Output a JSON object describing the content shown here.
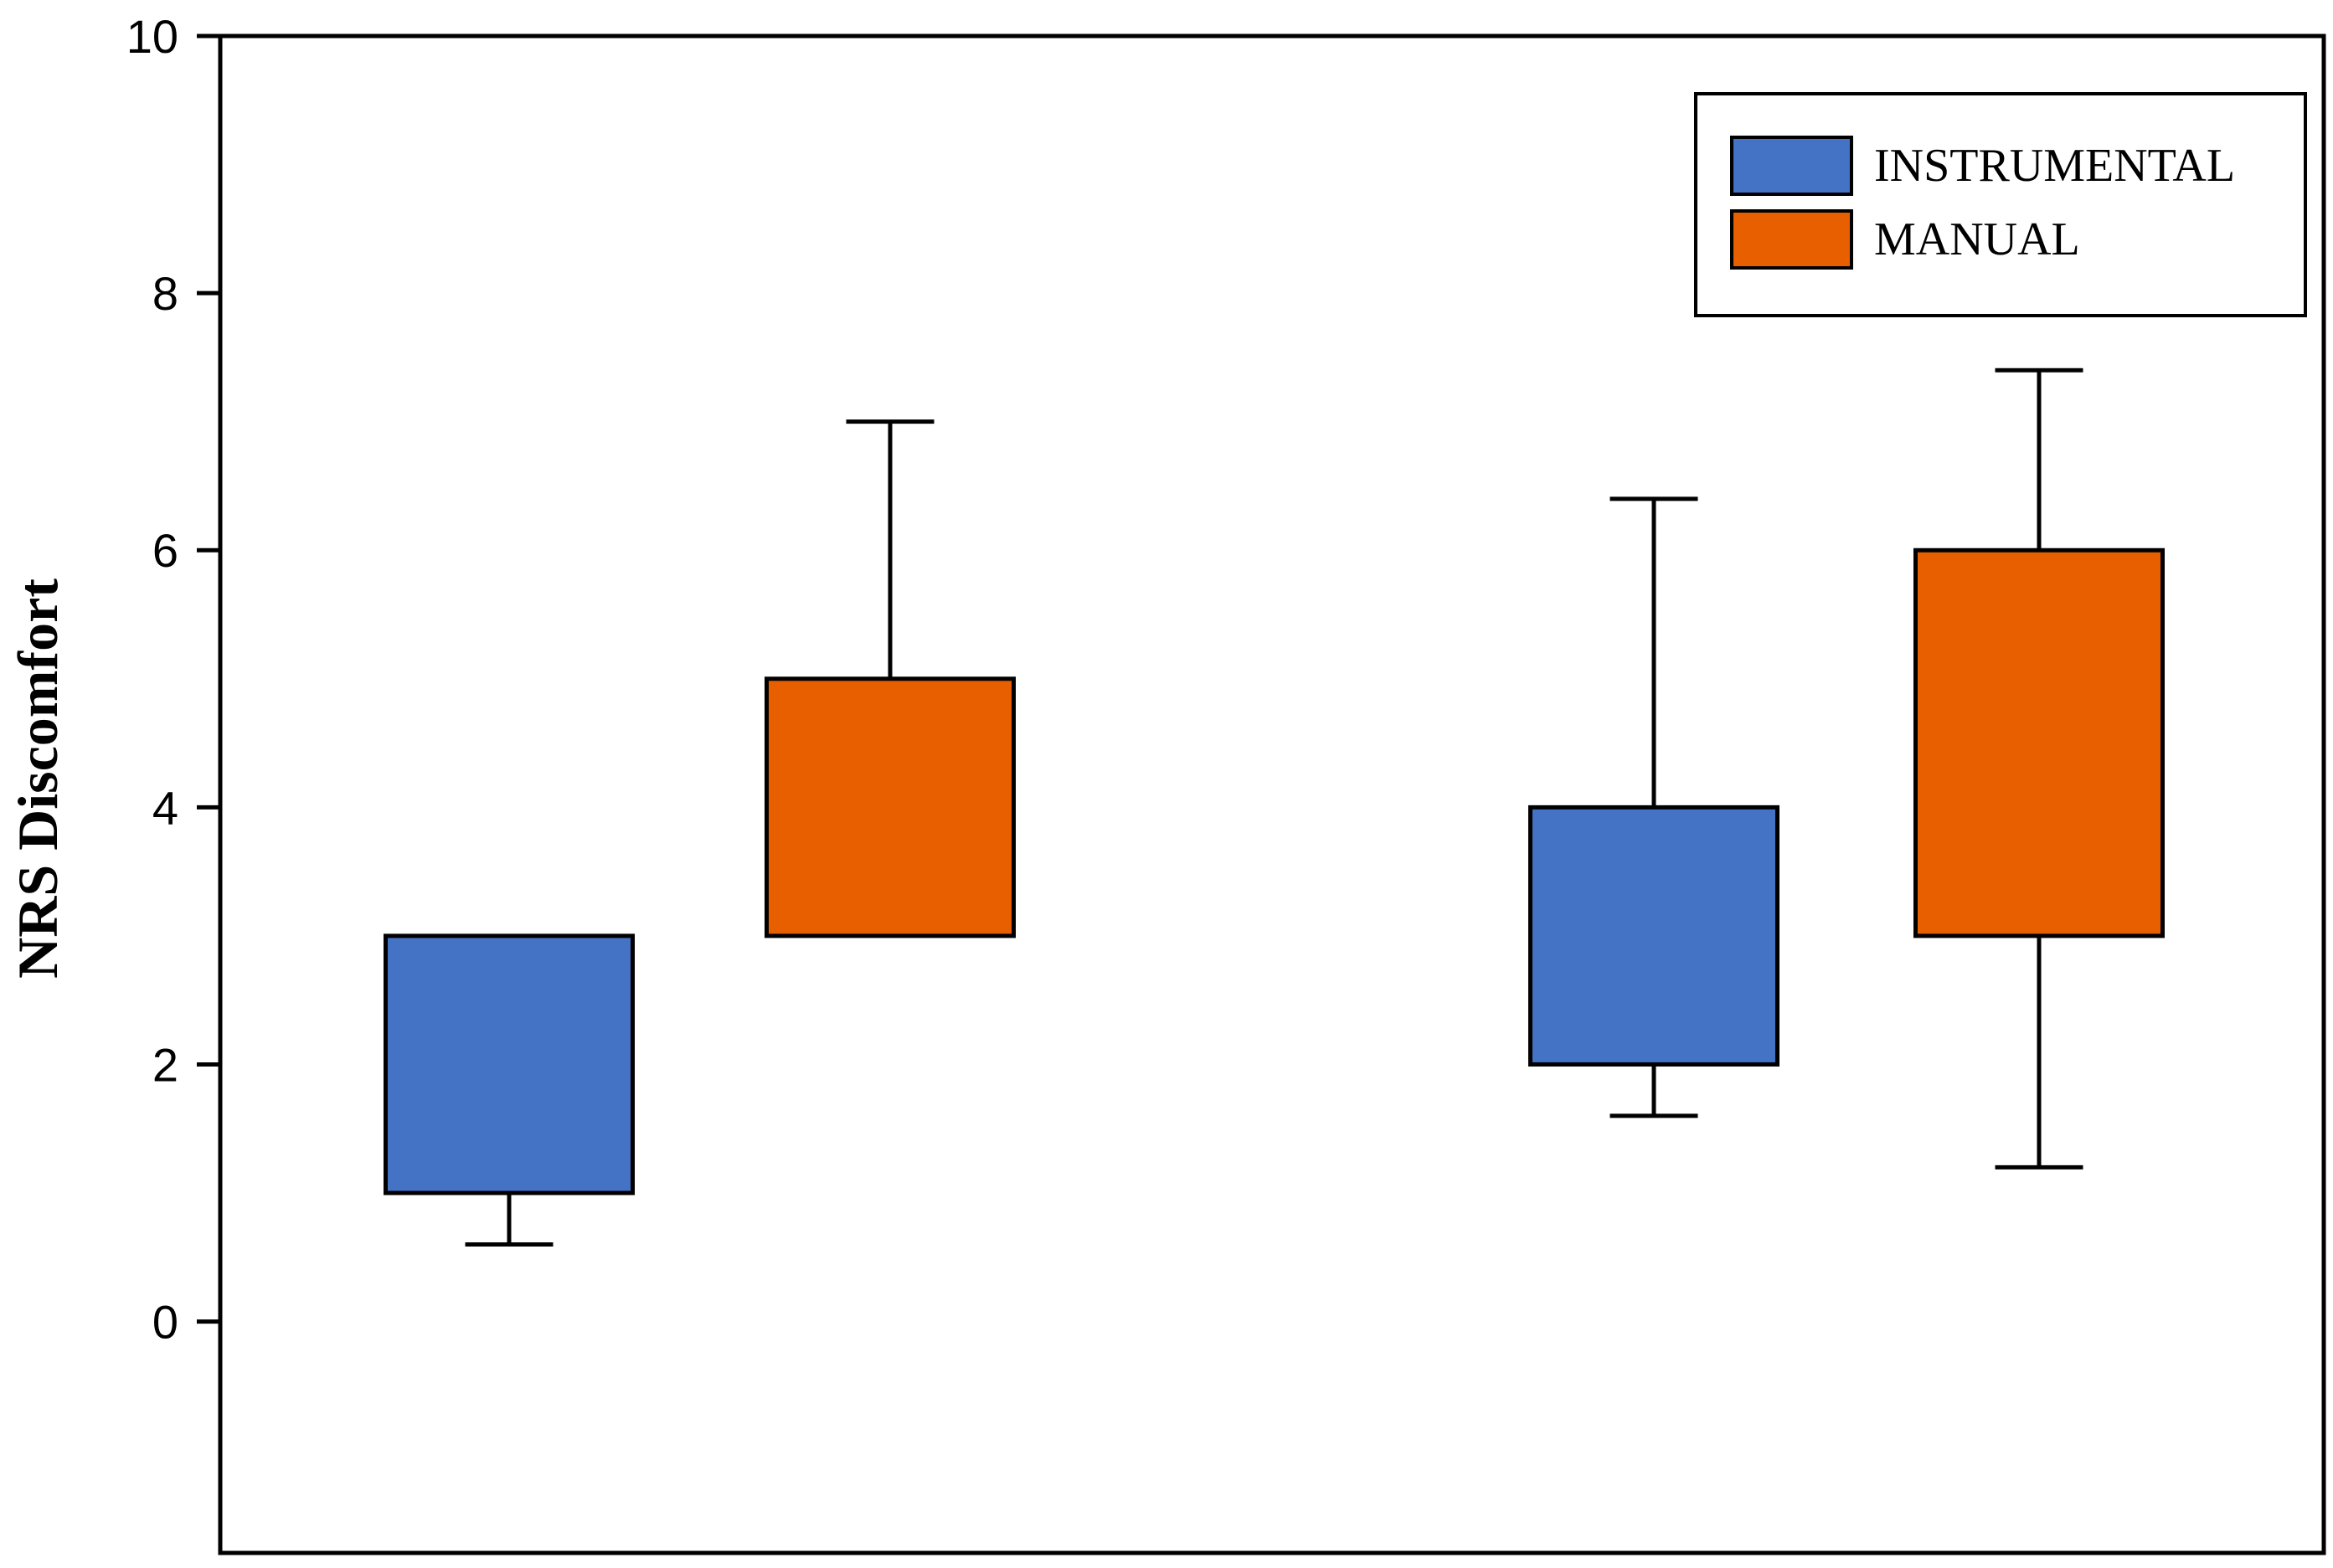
{
  "chart_data": {
    "type": "box",
    "ylabel": "NRS Discomfort",
    "ylim": [
      -1.8,
      10
    ],
    "yticks": [
      0,
      2,
      4,
      6,
      8,
      10
    ],
    "groups": 2,
    "legend_position": "top-right",
    "series": [
      {
        "name": "INSTRUMENTAL",
        "color": "#4472C4",
        "boxes": [
          {
            "group": 1,
            "whisker_low": 0.6,
            "q1": 1,
            "q3": 3,
            "whisker_high": 3
          },
          {
            "group": 2,
            "whisker_low": 1.6,
            "q1": 2,
            "q3": 4,
            "whisker_high": 6.4
          }
        ]
      },
      {
        "name": "MANUAL",
        "color": "#E85F00",
        "boxes": [
          {
            "group": 1,
            "whisker_low": 3,
            "q1": 3,
            "q3": 5,
            "whisker_high": 7
          },
          {
            "group": 2,
            "whisker_low": 1.2,
            "q1": 3,
            "q3": 6,
            "whisker_high": 7.4
          }
        ]
      }
    ]
  }
}
